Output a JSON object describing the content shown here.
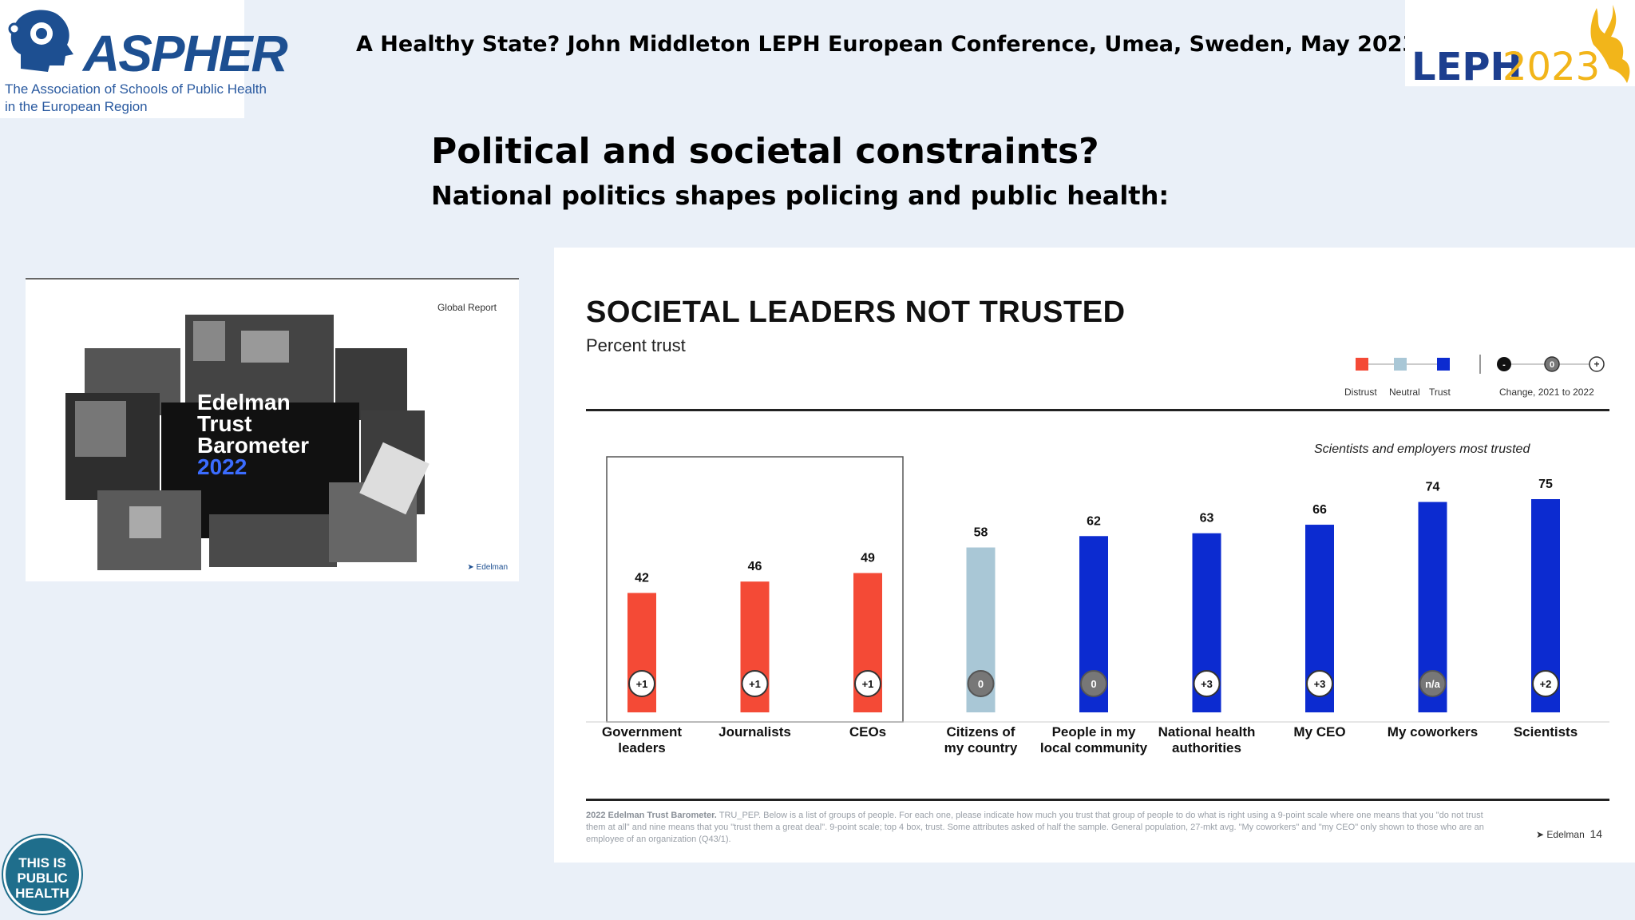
{
  "header": {
    "conference_title": "A  Healthy State?  John Middleton LEPH European Conference, Umea, Sweden, May 2023",
    "aspher_word": "ASPHER",
    "aspher_tagline_1": "The Association of Schools of Public Health",
    "aspher_tagline_2": "in the European Region",
    "leph_logo_left": "LEPH",
    "leph_logo_right": "2023"
  },
  "slide": {
    "title": "Political and societal constraints?",
    "subtitle": "National politics shapes policing and public health:"
  },
  "cover": {
    "global_report": "Global Report",
    "line1": "Edelman",
    "line2": "Trust",
    "line3": "Barometer",
    "year": "2022",
    "logo": "Edelman"
  },
  "badge": {
    "line1": "THIS IS",
    "line2": "PUBLIC",
    "line3": "HEALTH"
  },
  "chart_data": {
    "type": "bar",
    "title": "SOCIETAL LEADERS NOT TRUSTED",
    "subtitle": "Percent trust",
    "annotation": "Scientists and employers most trusted",
    "categories": [
      [
        "Government",
        "leaders"
      ],
      [
        "Journalists"
      ],
      [
        "CEOs"
      ],
      [
        "Citizens of",
        "my country"
      ],
      [
        "People in my",
        "local community"
      ],
      [
        "National health",
        "authorities"
      ],
      [
        "My CEO"
      ],
      [
        "My coworkers"
      ],
      [
        "Scientists"
      ]
    ],
    "values": [
      42,
      46,
      49,
      58,
      62,
      63,
      66,
      74,
      75
    ],
    "trust_level": [
      "Distrust",
      "Distrust",
      "Distrust",
      "Neutral",
      "Trust",
      "Trust",
      "Trust",
      "Trust",
      "Trust"
    ],
    "change": [
      "+1",
      "+1",
      "+1",
      "0",
      "0",
      "+3",
      "+3",
      "n/a",
      "+2"
    ],
    "change_direction": [
      "up",
      "up",
      "up",
      "none",
      "none",
      "up",
      "up",
      "none",
      "up"
    ],
    "ylim": [
      0,
      100
    ],
    "highlight_box_categories": [
      0,
      1,
      2
    ],
    "legend": {
      "position": "top-right",
      "items": [
        "Distrust",
        "Neutral",
        "Trust"
      ],
      "change_label": "Change, 2021 to 2022",
      "change_symbols": [
        "-",
        "0",
        "+"
      ]
    },
    "colors": {
      "Distrust": "#f44a36",
      "Neutral": "#a9c7d6",
      "Trust": "#0c2bd0",
      "change_up": "#ffffff",
      "change_none": "#777777"
    },
    "footnote_bold": "2022 Edelman Trust Barometer.",
    "footnote": "TRU_PEP. Below is a list of groups of people. For each one, please indicate how much you trust that group of people to do what is right using a 9-point scale where one means that you \"do not trust them at all\" and nine means that you \"trust them a great deal\". 9-point scale; top 4 box, trust. Some attributes asked of half the sample. General population, 27-mkt avg. \"My coworkers\" and \"my CEO\" only shown to those who are an employee of an organization (Q43/1).",
    "footer_logo": "Edelman",
    "page_number": "14"
  }
}
